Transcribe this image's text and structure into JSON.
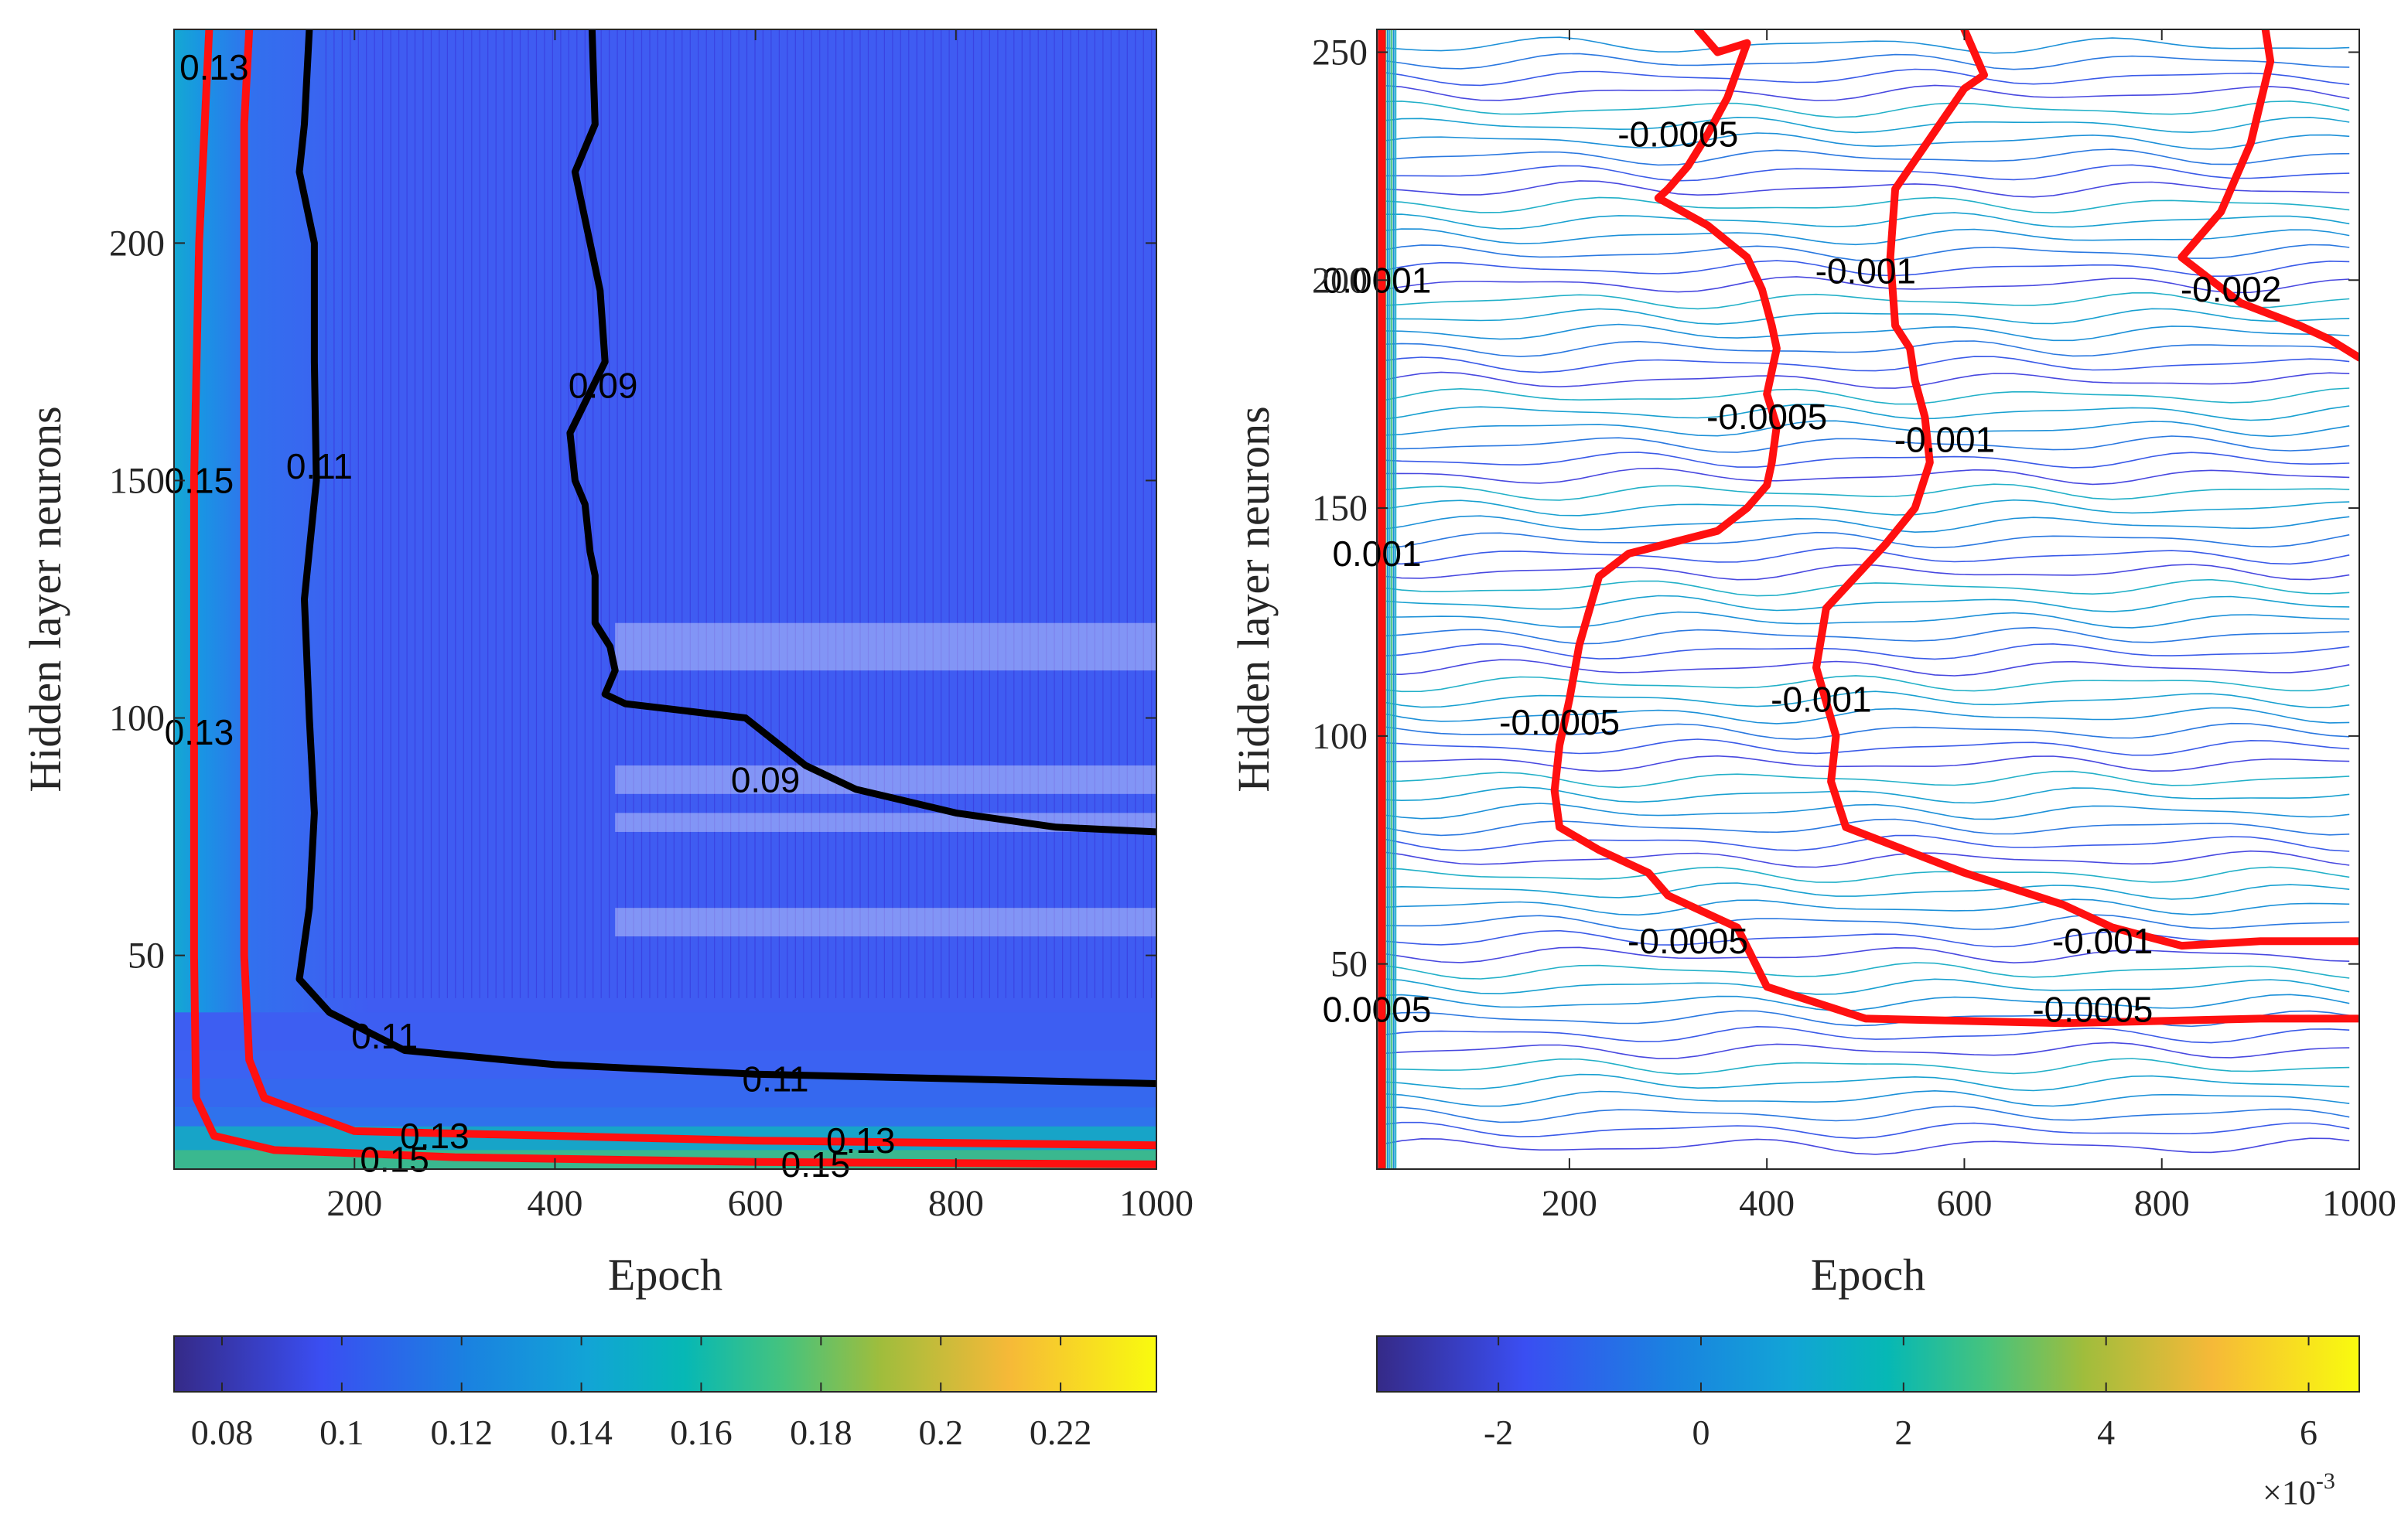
{
  "chart_data": [
    {
      "type": "contour",
      "title": "",
      "xlabel": "Epoch",
      "ylabel": "Hidden layer neurons",
      "xlim": [
        20,
        1000
      ],
      "ylim": [
        5,
        245
      ],
      "xticks": [
        200,
        400,
        600,
        800,
        1000
      ],
      "yticks": [
        50,
        100,
        150,
        200
      ],
      "xtick_labels": [
        "200",
        "400",
        "600",
        "800",
        "1000"
      ],
      "ytick_labels": [
        "50",
        "100",
        "150",
        "200"
      ],
      "highlighted_contours": [
        {
          "level": 0.09,
          "color": "black",
          "points": [
            [
              437,
              245
            ],
            [
              440,
              225
            ],
            [
              420,
              215
            ],
            [
              445,
              190
            ],
            [
              450,
              175
            ],
            [
              415,
              160
            ],
            [
              420,
              150
            ],
            [
              430,
              145
            ],
            [
              435,
              135
            ],
            [
              440,
              130
            ],
            [
              440,
              120
            ],
            [
              455,
              115
            ],
            [
              460,
              110
            ],
            [
              450,
              105
            ],
            [
              470,
              103
            ],
            [
              590,
              100
            ],
            [
              620,
              95
            ],
            [
              650,
              90
            ],
            [
              700,
              85
            ],
            [
              800,
              80
            ],
            [
              900,
              77
            ],
            [
              1000,
              76
            ]
          ]
        },
        {
          "level": 0.11,
          "color": "black",
          "points": [
            [
              155,
              245
            ],
            [
              150,
              225
            ],
            [
              145,
              215
            ],
            [
              160,
              200
            ],
            [
              160,
              175
            ],
            [
              162,
              150
            ],
            [
              150,
              125
            ],
            [
              155,
              100
            ],
            [
              160,
              80
            ],
            [
              155,
              60
            ],
            [
              145,
              45
            ],
            [
              175,
              38
            ],
            [
              250,
              30
            ],
            [
              400,
              27
            ],
            [
              600,
              25
            ],
            [
              800,
              24
            ],
            [
              1000,
              23
            ]
          ]
        },
        {
          "level": 0.13,
          "color": "red",
          "points": [
            [
              95,
              245
            ],
            [
              90,
              225
            ],
            [
              90,
              200
            ],
            [
              90,
              150
            ],
            [
              90,
              100
            ],
            [
              90,
              50
            ],
            [
              95,
              28
            ],
            [
              110,
              20
            ],
            [
              200,
              13
            ],
            [
              400,
              12
            ],
            [
              600,
              11
            ],
            [
              800,
              10.5
            ],
            [
              1000,
              10
            ]
          ]
        },
        {
          "level": 0.15,
          "color": "red",
          "points": [
            [
              55,
              245
            ],
            [
              45,
              200
            ],
            [
              40,
              150
            ],
            [
              40,
              100
            ],
            [
              40,
              50
            ],
            [
              42,
              20
            ],
            [
              60,
              12
            ],
            [
              120,
              9
            ],
            [
              300,
              7.5
            ],
            [
              600,
              6.5
            ],
            [
              1000,
              6
            ]
          ]
        }
      ],
      "contour_labels": [
        {
          "text": "0.13",
          "x": 60,
          "y": 237
        },
        {
          "text": "0.15",
          "x": 45,
          "y": 150
        },
        {
          "text": "0.11",
          "x": 165,
          "y": 153
        },
        {
          "text": "0.09",
          "x": 448,
          "y": 170
        },
        {
          "text": "0.13",
          "x": 45,
          "y": 97
        },
        {
          "text": "0.09",
          "x": 610,
          "y": 87
        },
        {
          "text": "0.11",
          "x": 230,
          "y": 33
        },
        {
          "text": "0.11",
          "x": 620,
          "y": 24
        },
        {
          "text": "0.13",
          "x": 280,
          "y": 12
        },
        {
          "text": "0.15",
          "x": 240,
          "y": 7
        },
        {
          "text": "0.13",
          "x": 705,
          "y": 11
        },
        {
          "text": "0.15",
          "x": 660,
          "y": 6
        }
      ],
      "colorbar": {
        "range": [
          0.072,
          0.236
        ],
        "ticks": [
          0.08,
          0.1,
          0.12,
          0.14,
          0.16,
          0.18,
          0.2,
          0.22
        ],
        "tick_labels": [
          "0.08",
          "0.1",
          "0.12",
          "0.14",
          "0.16",
          "0.18",
          "0.2",
          "0.22"
        ],
        "colormap": "parula"
      }
    },
    {
      "type": "contour",
      "title": "",
      "xlabel": "Epoch",
      "ylabel": "Hidden layer neurons",
      "xlim": [
        5,
        1000
      ],
      "ylim": [
        5,
        255
      ],
      "xticks": [
        200,
        400,
        600,
        800,
        1000
      ],
      "yticks": [
        50,
        100,
        150,
        200,
        250
      ],
      "xtick_labels": [
        "200",
        "400",
        "600",
        "800",
        "1000"
      ],
      "ytick_labels": [
        "50",
        "100",
        "150",
        "200",
        "250"
      ],
      "highlighted_contours": [
        {
          "level": -0.0005,
          "color": "red",
          "points": [
            [
              330,
              255
            ],
            [
              350,
              250
            ],
            [
              380,
              252
            ],
            [
              360,
              240
            ],
            [
              340,
              232
            ],
            [
              320,
              225
            ],
            [
              300,
              220
            ],
            [
              290,
              218
            ],
            [
              340,
              212
            ],
            [
              380,
              205
            ],
            [
              395,
              198
            ],
            [
              405,
              190
            ],
            [
              410,
              185
            ],
            [
              400,
              175
            ],
            [
              410,
              168
            ],
            [
              405,
              160
            ],
            [
              400,
              155
            ],
            [
              380,
              150
            ],
            [
              350,
              145
            ],
            [
              260,
              140
            ],
            [
              230,
              135
            ],
            [
              210,
              120
            ],
            [
              200,
              108
            ],
            [
              190,
              98
            ],
            [
              185,
              88
            ],
            [
              190,
              80
            ],
            [
              230,
              75
            ],
            [
              280,
              70
            ],
            [
              300,
              65
            ],
            [
              370,
              58
            ],
            [
              400,
              45
            ],
            [
              500,
              38
            ],
            [
              700,
              37
            ],
            [
              900,
              38
            ],
            [
              1000,
              38
            ]
          ]
        },
        {
          "level": -0.001,
          "color": "red",
          "points": [
            [
              600,
              255
            ],
            [
              620,
              245
            ],
            [
              600,
              242
            ],
            [
              530,
              220
            ],
            [
              525,
              205
            ],
            [
              530,
              190
            ],
            [
              545,
              185
            ],
            [
              550,
              178
            ],
            [
              560,
              170
            ],
            [
              565,
              160
            ],
            [
              550,
              150
            ],
            [
              520,
              142
            ],
            [
              460,
              128
            ],
            [
              450,
              115
            ],
            [
              470,
              100
            ],
            [
              465,
              90
            ],
            [
              480,
              80
            ],
            [
              600,
              70
            ],
            [
              700,
              63
            ],
            [
              750,
              58
            ],
            [
              820,
              54
            ],
            [
              900,
              55
            ],
            [
              1000,
              55
            ]
          ]
        },
        {
          "level": -0.002,
          "color": "red",
          "points": [
            [
              905,
              255
            ],
            [
              910,
              248
            ],
            [
              890,
              230
            ],
            [
              860,
              215
            ],
            [
              820,
              205
            ],
            [
              880,
              195
            ],
            [
              940,
              190
            ],
            [
              970,
              187
            ],
            [
              1000,
              183
            ]
          ]
        },
        {
          "level": 0,
          "color": "red",
          "points": [
            [
              10,
              5
            ],
            [
              10,
              255
            ]
          ]
        }
      ],
      "contour_labels": [
        {
          "text": "-0.0005",
          "x": 310,
          "y": 232
        },
        {
          "text": "-0.001",
          "x": 500,
          "y": 202
        },
        {
          "text": "-0.002",
          "x": 870,
          "y": 198
        },
        {
          "text": "-0.0005",
          "x": 400,
          "y": 170
        },
        {
          "text": "-0.001",
          "x": 580,
          "y": 165
        },
        {
          "text": "-0.0005",
          "x": 190,
          "y": 103
        },
        {
          "text": "-0.001",
          "x": 455,
          "y": 108
        },
        {
          "text": "-0.0005",
          "x": 320,
          "y": 55
        },
        {
          "text": "-0.001",
          "x": 740,
          "y": 55
        },
        {
          "text": "-0.0005",
          "x": 730,
          "y": 40
        },
        {
          "text": "0.0005",
          "x": 5,
          "y": 40
        },
        {
          "text": "0.001",
          "x": 5,
          "y": 140
        },
        {
          "text": "0.0001",
          "x": 5,
          "y": 200
        }
      ],
      "colorbar": {
        "range": [
          -3.2,
          6.5
        ],
        "ticks": [
          -2,
          0,
          2,
          4,
          6
        ],
        "tick_labels": [
          "-2",
          "0",
          "2",
          "4",
          "6"
        ],
        "multiplier": "×10",
        "exponent": "-3",
        "colormap": "parula"
      }
    }
  ]
}
